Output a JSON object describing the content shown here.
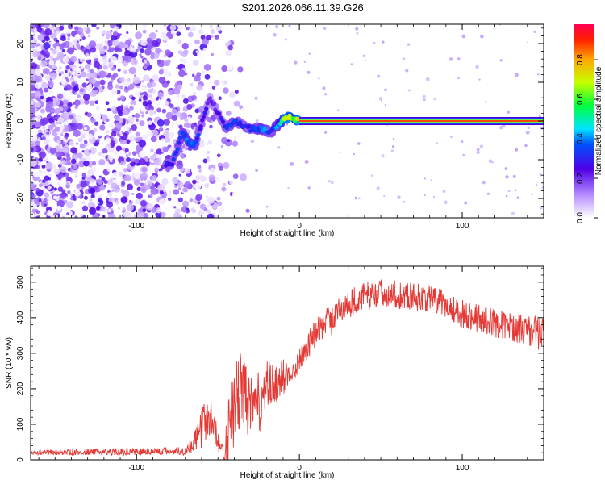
{
  "title": "S201.2026.066.11.39.G26",
  "chart_data": [
    {
      "type": "heatmap",
      "id": "spectrogram",
      "xlabel": "Height of straight line (km)",
      "ylabel": "Frequency (Hz)",
      "xlim": [
        -165,
        150
      ],
      "ylim": [
        -25,
        25
      ],
      "xticks": [
        -100,
        0,
        100
      ],
      "yticks": [
        -20,
        -10,
        0,
        10,
        20
      ],
      "colorbar": {
        "label": "Normalized spectral amplitude",
        "range": [
          0,
          0.98
        ],
        "ticks": [
          0,
          0.2,
          0.4,
          0.6,
          0.8
        ]
      },
      "ridge": [
        {
          "x": -82,
          "y": -11,
          "a": 0.3
        },
        {
          "x": -78,
          "y": -11,
          "a": 0.3
        },
        {
          "x": -72,
          "y": -3,
          "a": 0.35
        },
        {
          "x": -67,
          "y": -6,
          "a": 0.4
        },
        {
          "x": -64,
          "y": -6,
          "a": 0.35
        },
        {
          "x": -55,
          "y": 6,
          "a": 0.2
        },
        {
          "x": -45,
          "y": -2,
          "a": 0.3
        },
        {
          "x": -40,
          "y": 0,
          "a": 0.35
        },
        {
          "x": -35,
          "y": -1,
          "a": 0.3
        },
        {
          "x": -30,
          "y": -2,
          "a": 0.3
        },
        {
          "x": -22,
          "y": -2,
          "a": 0.4
        },
        {
          "x": -18,
          "y": -3,
          "a": 0.3
        },
        {
          "x": -13,
          "y": -1,
          "a": 0.4
        },
        {
          "x": -8,
          "y": 1,
          "a": 0.75
        },
        {
          "x": -3,
          "y": 0.5,
          "a": 0.6
        },
        {
          "x": 0,
          "y": 0,
          "a": 0.8
        },
        {
          "x": 150,
          "y": 0,
          "a": 0.8
        }
      ]
    },
    {
      "type": "line",
      "id": "snr",
      "xlabel": "Height of straight line (km)",
      "ylabel": "SNR (10 * v/v)",
      "xlim": [
        -165,
        150
      ],
      "ylim": [
        0,
        545
      ],
      "xticks": [
        -100,
        0,
        100
      ],
      "yticks": [
        0,
        100,
        200,
        300,
        400,
        500
      ],
      "color": "#e53935",
      "envelope": {
        "x": [
          -165,
          -70,
          -63,
          -58,
          -55,
          -52,
          -48,
          -45,
          -42,
          -38,
          -35,
          -30,
          -25,
          -20,
          -15,
          -10,
          -5,
          0,
          10,
          20,
          30,
          40,
          50,
          60,
          70,
          80,
          90,
          100,
          110,
          120,
          130,
          140,
          150
        ],
        "mean": [
          20,
          25,
          60,
          110,
          120,
          90,
          20,
          60,
          110,
          180,
          200,
          140,
          160,
          200,
          210,
          230,
          255,
          280,
          360,
          400,
          440,
          460,
          470,
          465,
          460,
          455,
          435,
          410,
          400,
          385,
          375,
          365,
          355
        ],
        "amp": [
          7,
          12,
          35,
          70,
          60,
          40,
          20,
          90,
          110,
          120,
          100,
          90,
          90,
          80,
          60,
          55,
          40,
          35,
          40,
          40,
          40,
          40,
          40,
          40,
          40,
          40,
          40,
          40,
          40,
          40,
          40,
          45,
          50
        ]
      }
    }
  ]
}
